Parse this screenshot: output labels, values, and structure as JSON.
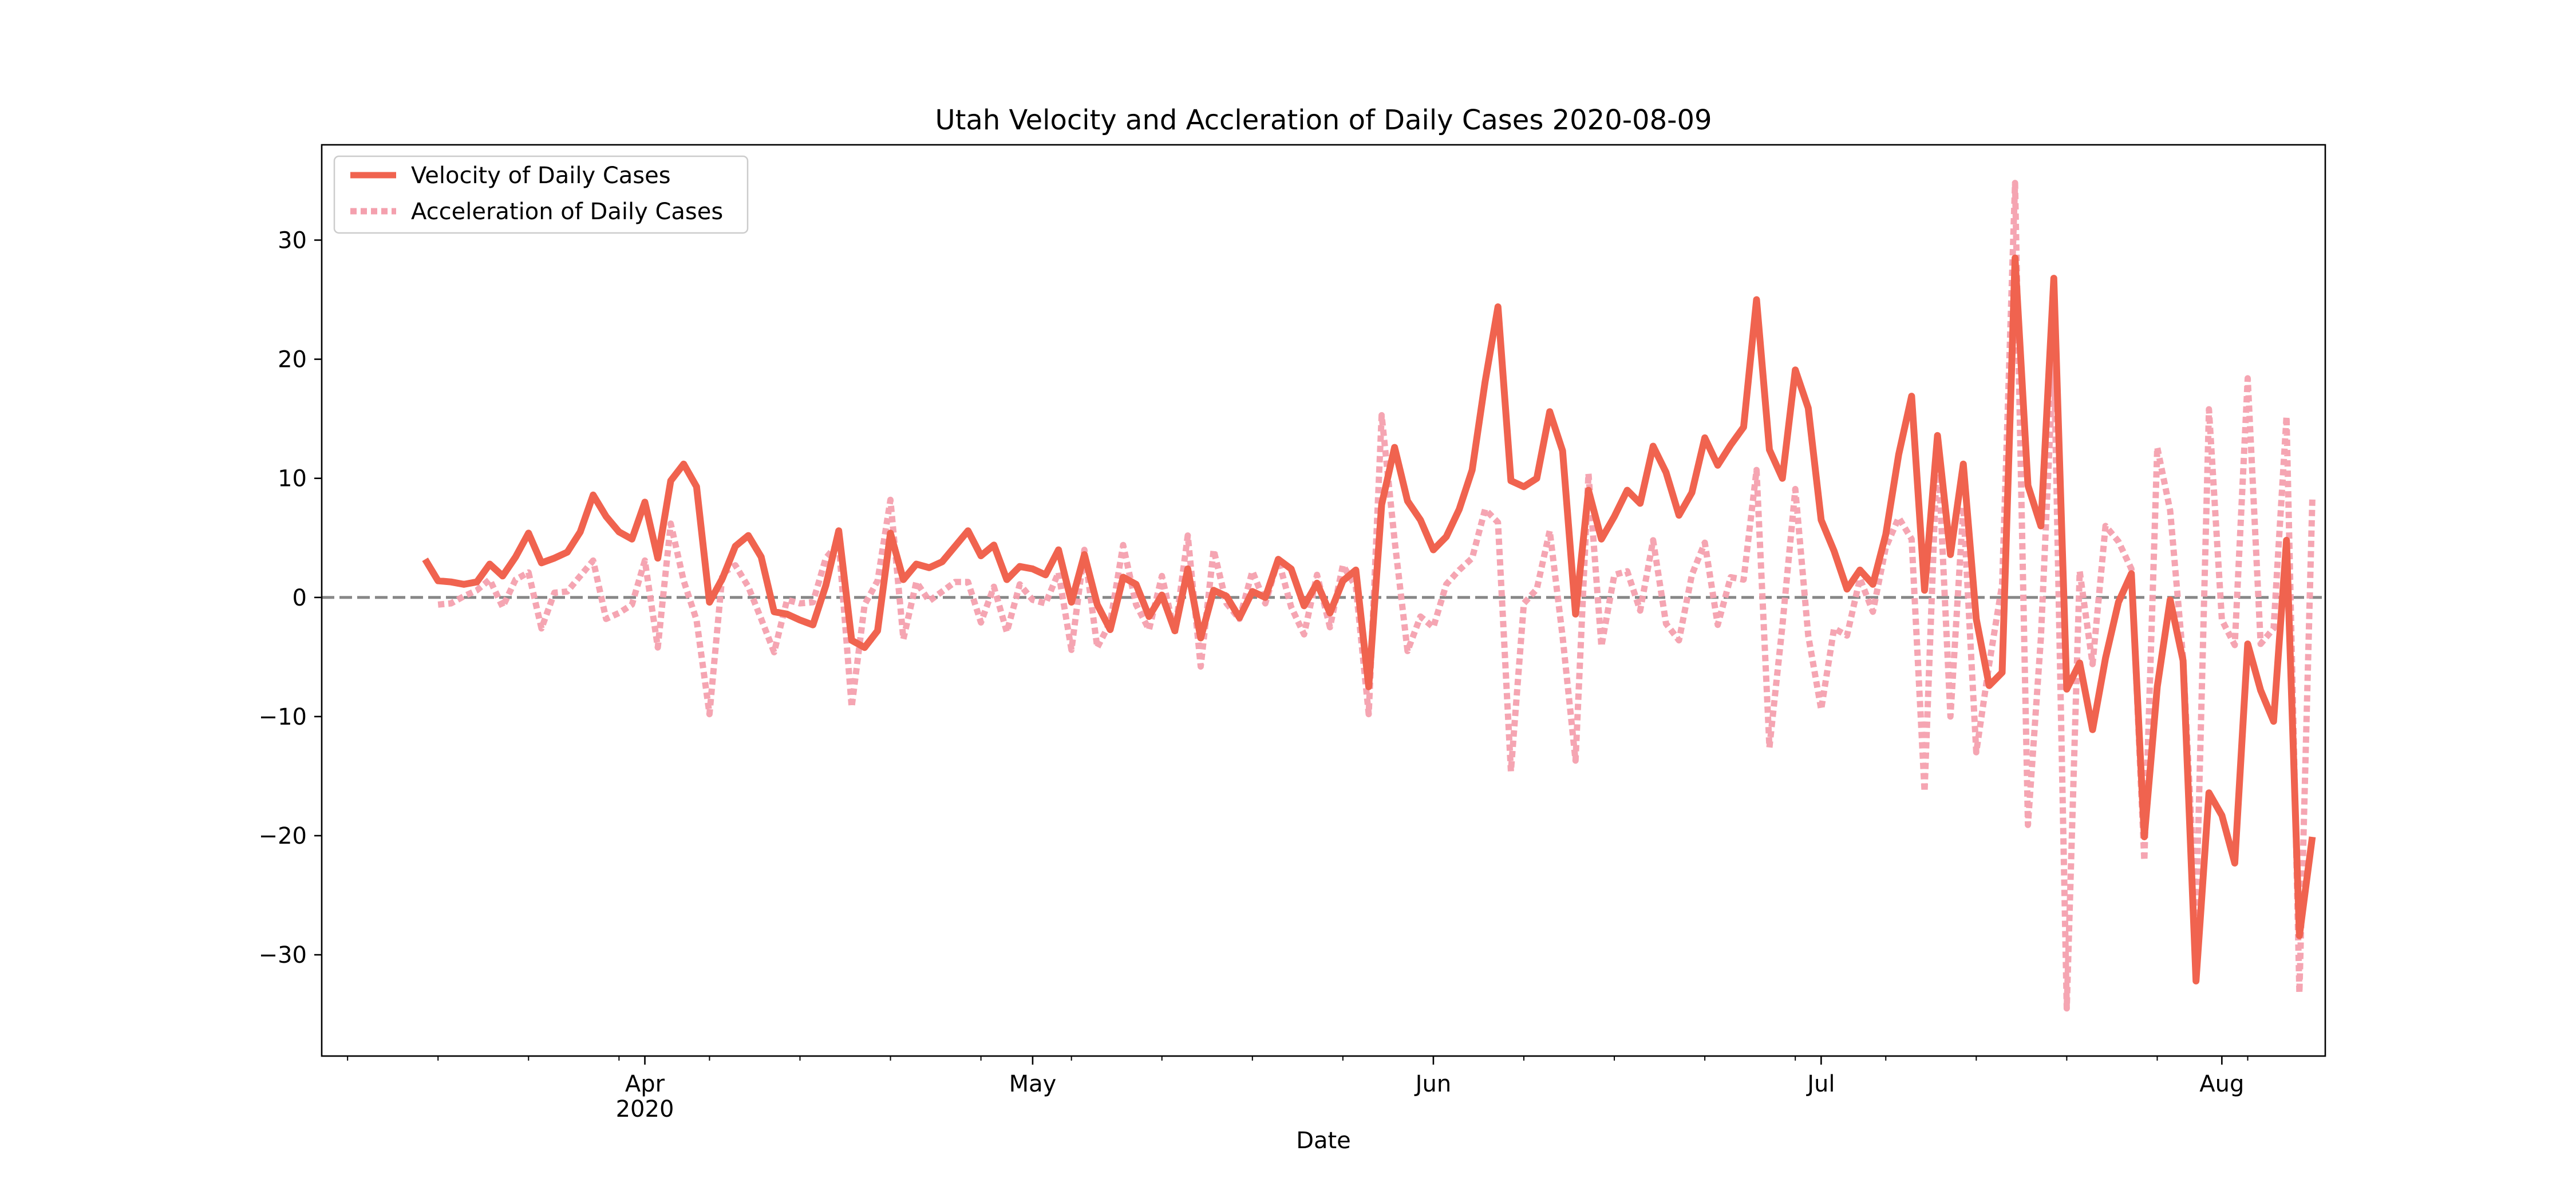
{
  "chart_data": {
    "type": "line",
    "title": "Utah Velocity and Accleration of Daily Cases 2020-08-09",
    "xlabel": "Date",
    "ylabel": "",
    "xlim": [
      "2020-03-07",
      "2020-08-09"
    ],
    "ylim": [
      -38.5,
      38
    ],
    "y_ticks": [
      -30,
      -20,
      -10,
      0,
      10,
      20,
      30
    ],
    "y_tick_labels": [
      "−30",
      "−20",
      "−10",
      "0",
      "10",
      "20",
      "30"
    ],
    "x_ticks": [
      {
        "date": "2020-04-01",
        "label": "Apr",
        "sublabel": "2020"
      },
      {
        "date": "2020-05-01",
        "label": "May",
        "sublabel": ""
      },
      {
        "date": "2020-06-01",
        "label": "Jun",
        "sublabel": ""
      },
      {
        "date": "2020-07-01",
        "label": "Jul",
        "sublabel": ""
      },
      {
        "date": "2020-08-01",
        "label": "Aug",
        "sublabel": ""
      }
    ],
    "grid": false,
    "legend_position": "top-left",
    "reference_line": {
      "y": 0,
      "style": "dashed",
      "color": "#888888"
    },
    "x_start": "2020-03-15",
    "series": [
      {
        "name": "Velocity of Daily Cases",
        "color": "#f0634f",
        "style": "solid",
        "values": [
          3.2,
          1.4,
          1.3,
          1.1,
          1.3,
          2.8,
          1.8,
          3.4,
          5.4,
          2.9,
          3.3,
          3.8,
          5.5,
          8.6,
          6.8,
          5.5,
          4.9,
          8.0,
          3.3,
          9.8,
          11.2,
          9.3,
          -0.4,
          1.6,
          4.3,
          5.2,
          3.4,
          -1.2,
          -1.4,
          -1.9,
          -2.3,
          1.0,
          5.6,
          -3.6,
          -4.2,
          -2.8,
          5.4,
          1.5,
          2.8,
          2.5,
          3.0,
          4.3,
          5.6,
          3.5,
          4.4,
          1.5,
          2.6,
          2.4,
          1.9,
          4.0,
          -0.4,
          3.6,
          -0.6,
          -2.7,
          1.7,
          1.1,
          -1.6,
          0.2,
          -2.8,
          2.4,
          -3.4,
          0.6,
          0.1,
          -1.7,
          0.5,
          0.0,
          3.2,
          2.4,
          -0.7,
          1.2,
          -1.3,
          1.4,
          2.3,
          -7.5,
          7.8,
          12.6,
          8.1,
          6.5,
          4.0,
          5.1,
          7.4,
          10.7,
          18.1,
          24.4,
          9.8,
          9.3,
          10.0,
          15.6,
          12.3,
          -1.4,
          9.0,
          4.9,
          6.8,
          9.0,
          7.9,
          12.7,
          10.5,
          6.9,
          8.8,
          13.4,
          11.1,
          12.8,
          14.3,
          25.0,
          12.4,
          10.0,
          19.1,
          15.9,
          6.5,
          3.9,
          0.7,
          2.3,
          1.1,
          5.3,
          12.0,
          16.9,
          0.6,
          13.6,
          3.6,
          11.2,
          -1.8,
          -7.4,
          -6.3,
          28.5,
          9.4,
          6.0,
          26.8,
          -7.7,
          -5.5,
          -11.1,
          -5.1,
          -0.4,
          2.0,
          -20.1,
          -7.5,
          -0.2,
          -5.3,
          -32.2,
          -16.4,
          -18.3,
          -22.3,
          -3.9,
          -7.8,
          -10.4,
          4.8,
          -28.4,
          -20.1
        ]
      },
      {
        "name": "Acceleration of Daily Cases",
        "color": "#f4a0ae",
        "style": "dotted",
        "values": [
          null,
          -0.6,
          -0.5,
          0.1,
          0.6,
          1.5,
          -0.8,
          1.5,
          2.1,
          -2.6,
          0.4,
          0.5,
          1.8,
          3.1,
          -1.8,
          -1.3,
          -0.6,
          3.1,
          -4.2,
          6.2,
          1.4,
          -1.9,
          -9.8,
          2.0,
          2.7,
          0.9,
          -1.8,
          -4.6,
          -0.2,
          -0.5,
          -0.4,
          3.3,
          4.6,
          -9.2,
          -0.6,
          1.4,
          8.2,
          -3.5,
          1.3,
          -0.3,
          0.5,
          1.3,
          1.3,
          -2.1,
          0.9,
          -2.9,
          1.1,
          -0.2,
          -0.5,
          2.1,
          -4.4,
          4.0,
          -4.2,
          -2.1,
          4.4,
          -0.6,
          -2.7,
          1.8,
          -3.0,
          5.2,
          -5.8,
          4.0,
          -0.5,
          -1.8,
          2.2,
          -0.5,
          3.2,
          -0.8,
          -3.1,
          1.9,
          -2.5,
          2.7,
          0.9,
          -9.8,
          15.3,
          4.8,
          -4.5,
          -1.6,
          -2.5,
          1.1,
          2.3,
          3.3,
          7.4,
          6.3,
          -14.6,
          -0.5,
          0.7,
          5.6,
          -3.3,
          -13.7,
          10.4,
          -4.1,
          1.9,
          2.2,
          -1.1,
          4.8,
          -2.2,
          -3.6,
          1.9,
          4.6,
          -2.3,
          1.7,
          1.5,
          10.7,
          -12.6,
          -2.4,
          9.1,
          -3.2,
          -9.4,
          -2.6,
          -3.2,
          1.6,
          -1.2,
          4.2,
          6.7,
          4.9,
          -16.3,
          13.0,
          -10.0,
          7.6,
          -13.0,
          -5.6,
          1.1,
          34.8,
          -19.1,
          -3.4,
          20.8,
          -34.5,
          2.2,
          -5.6,
          6.0,
          4.7,
          2.4,
          -22.1,
          12.6,
          7.3,
          -5.1,
          -26.9,
          15.8,
          -1.9,
          -4.0,
          18.4,
          -3.9,
          -2.6,
          15.2,
          -33.2,
          8.3
        ]
      }
    ]
  }
}
